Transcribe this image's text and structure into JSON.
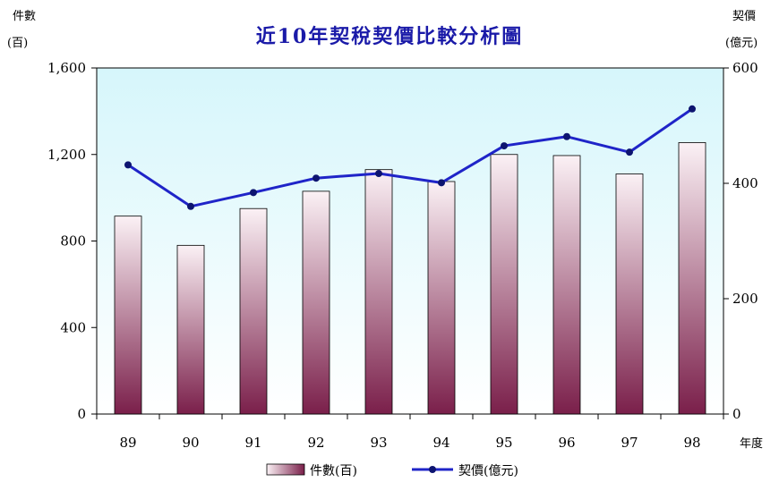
{
  "chart_data": {
    "type": "bar",
    "title": "近10年契稅契價比較分析圖",
    "left_axis_label": [
      "件數",
      "(百)"
    ],
    "right_axis_label": [
      "契價",
      "(億元)"
    ],
    "xlabel": "年度",
    "categories": [
      "89",
      "90",
      "91",
      "92",
      "93",
      "94",
      "95",
      "96",
      "97",
      "98"
    ],
    "y_left": {
      "min": 0,
      "max": 1600,
      "ticks": [
        "0",
        "400",
        "800",
        "1,200",
        "1,600"
      ]
    },
    "y_right": {
      "min": 0,
      "max": 600,
      "ticks": [
        "0",
        "200",
        "400",
        "600"
      ]
    },
    "series": [
      {
        "name": "件數(百)",
        "type": "bar",
        "axis": "left",
        "values": [
          915,
          780,
          950,
          1030,
          1130,
          1075,
          1200,
          1195,
          1110,
          1255
        ]
      },
      {
        "name": "契價(億元)",
        "type": "line",
        "axis": "right",
        "values": [
          432,
          360,
          384,
          409,
          417,
          401,
          465,
          481,
          454,
          529
        ]
      }
    ],
    "legend_position": "bottom",
    "colors": {
      "plot_bg_top": "#d6f6fb",
      "plot_bg_bottom": "#ffffff",
      "bar_dark": "#7a1f4a",
      "bar_light": "#fbf1f5",
      "line": "#1f24c8",
      "marker": "#0d1470",
      "title": "#1a1aa8"
    }
  }
}
